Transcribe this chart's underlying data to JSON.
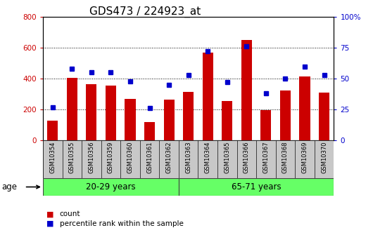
{
  "title": "GDS473 / 224923_at",
  "samples": [
    "GSM10354",
    "GSM10355",
    "GSM10356",
    "GSM10359",
    "GSM10360",
    "GSM10361",
    "GSM10362",
    "GSM10363",
    "GSM10364",
    "GSM10365",
    "GSM10366",
    "GSM10367",
    "GSM10368",
    "GSM10369",
    "GSM10370"
  ],
  "counts": [
    130,
    405,
    365,
    355,
    270,
    120,
    265,
    315,
    570,
    255,
    650,
    195,
    325,
    415,
    310
  ],
  "percentiles": [
    27,
    58,
    55,
    55,
    48,
    26,
    45,
    53,
    72,
    47,
    76,
    38,
    50,
    60,
    53
  ],
  "group1_label": "20-29 years",
  "group2_label": "65-71 years",
  "group1_count": 7,
  "group2_count": 8,
  "ylim_left": [
    0,
    800
  ],
  "ylim_right": [
    0,
    100
  ],
  "yticks_left": [
    0,
    200,
    400,
    600,
    800
  ],
  "yticks_right": [
    0,
    25,
    50,
    75,
    100
  ],
  "bar_color": "#CC0000",
  "dot_color": "#0000CC",
  "bg_color": "#C8C8C8",
  "group_bg": "#66FF66",
  "legend_count_label": "count",
  "legend_pct_label": "percentile rank within the sample",
  "title_fontsize": 11,
  "tick_fontsize": 7.5,
  "label_fontsize": 8.5
}
